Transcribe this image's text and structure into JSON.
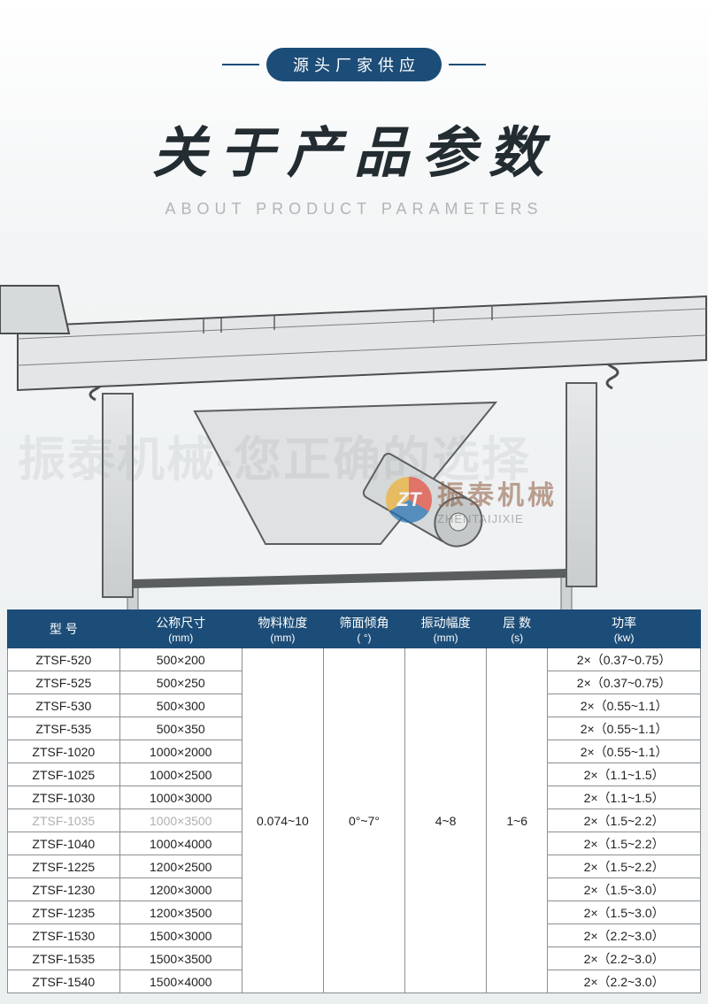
{
  "header": {
    "badge": "源头厂家供应",
    "title": "关于产品参数",
    "subtitle": "ABOUT PRODUCT PARAMETERS"
  },
  "watermark_bg": "振泰机械-您正确的选择",
  "brand": {
    "cn": "振泰机械",
    "en": "ZHENTAIJIXIE"
  },
  "table": {
    "headers": {
      "model": {
        "label": "型 号",
        "unit": ""
      },
      "size": {
        "label": "公称尺寸",
        "unit": "(mm)"
      },
      "grain": {
        "label": "物料粒度",
        "unit": "(mm)"
      },
      "angle": {
        "label": "筛面倾角",
        "unit": "( °)"
      },
      "amplitude": {
        "label": "振动幅度",
        "unit": "(mm)"
      },
      "layers": {
        "label": "层 数",
        "unit": "(s)"
      },
      "power": {
        "label": "功率",
        "unit": "(kw)"
      }
    },
    "grain_value": "0.074~10",
    "angle_value": "0°~7°",
    "amplitude_value": "4~8",
    "layers_value": "1~6",
    "rows": [
      {
        "model": "ZTSF-520",
        "size": "500×200",
        "power": "2×（0.37~0.75）"
      },
      {
        "model": "ZTSF-525",
        "size": "500×250",
        "power": "2×（0.37~0.75）"
      },
      {
        "model": "ZTSF-530",
        "size": "500×300",
        "power": "2×（0.55~1.1）"
      },
      {
        "model": "ZTSF-535",
        "size": "500×350",
        "power": "2×（0.55~1.1）"
      },
      {
        "model": "ZTSF-1020",
        "size": "1000×2000",
        "power": "2×（0.55~1.1）"
      },
      {
        "model": "ZTSF-1025",
        "size": "1000×2500",
        "power": "2×（1.1~1.5）"
      },
      {
        "model": "ZTSF-1030",
        "size": "1000×3000",
        "power": "2×（1.1~1.5）"
      },
      {
        "model": "ZTSF-1035",
        "size": "1000×3500",
        "power": "2×（1.5~2.2）",
        "faded": true
      },
      {
        "model": "ZTSF-1040",
        "size": "1000×4000",
        "power": "2×（1.5~2.2）"
      },
      {
        "model": "ZTSF-1225",
        "size": "1200×2500",
        "power": "2×（1.5~2.2）"
      },
      {
        "model": "ZTSF-1230",
        "size": "1200×3000",
        "power": "2×（1.5~3.0）"
      },
      {
        "model": "ZTSF-1235",
        "size": "1200×3500",
        "power": "2×（1.5~3.0）"
      },
      {
        "model": "ZTSF-1530",
        "size": "1500×3000",
        "power": "2×（2.2~3.0）"
      },
      {
        "model": "ZTSF-1535",
        "size": "1500×3500",
        "power": "2×（2.2~3.0）"
      },
      {
        "model": "ZTSF-1540",
        "size": "1500×4000",
        "power": "2×（2.2~3.0）"
      }
    ]
  },
  "colors": {
    "header_bg": "#1c4d78",
    "border": "#8a8f92",
    "title": "#222c31",
    "subtitle": "#b0b6b9"
  }
}
